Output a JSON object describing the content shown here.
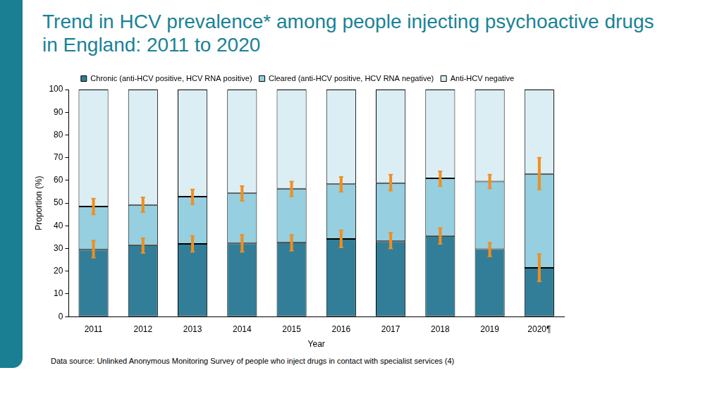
{
  "chart_data": {
    "type": "bar",
    "title": "Trend in HCV prevalence* among people injecting psychoactive drugs in England: 2011 to 2020",
    "note": "Data source: Unlinked Anonymous Monitoring Survey of people who inject drugs in contact with specialist services (4)",
    "x_label": "Year",
    "y_label": "Proportion (%)",
    "categories": [
      "2011",
      "2012",
      "2013",
      "2014",
      "2015",
      "2016",
      "2017",
      "2018",
      "2019",
      "2020¶"
    ],
    "stacked": true,
    "legend": "top",
    "grid": false,
    "ylim": [
      0,
      100
    ],
    "yticks": [
      0,
      10,
      20,
      30,
      40,
      50,
      60,
      70,
      80,
      90,
      100
    ],
    "series": [
      {
        "name": "Chronic (anti-HCV positive, HCV RNA positive)",
        "color": "#327e98",
        "values": [
          29.5,
          31.5,
          32.0,
          32.3,
          32.7,
          34.2,
          33.2,
          35.5,
          29.7,
          21.5
        ],
        "error_low": [
          26,
          28,
          28.5,
          28.5,
          29,
          30.5,
          30,
          32,
          26.5,
          15.5
        ],
        "error_high": [
          33.5,
          34.5,
          35.5,
          36,
          36,
          38,
          37,
          39,
          32.5,
          27.5
        ]
      },
      {
        "name": "Cleared (anti-HCV positive, HCV RNA negative)",
        "color": "#95cfe0",
        "values": [
          19.0,
          17.7,
          20.8,
          22.0,
          23.6,
          24.1,
          25.6,
          25.4,
          29.8,
          41.3
        ],
        "error_low": [
          45,
          46,
          49.5,
          51,
          53,
          55,
          55.5,
          57.5,
          56.5,
          56
        ],
        "error_high": [
          52,
          52.5,
          56,
          57.5,
          59.5,
          61.5,
          62.5,
          64,
          62.5,
          70
        ]
      },
      {
        "name": "Anti-HCV negative",
        "color": "#dbeef4",
        "values": [
          51.5,
          50.8,
          47.2,
          45.7,
          43.7,
          41.7,
          41.2,
          39.1,
          40.5,
          37.2
        ]
      }
    ],
    "error_color": "#f28e1c"
  }
}
